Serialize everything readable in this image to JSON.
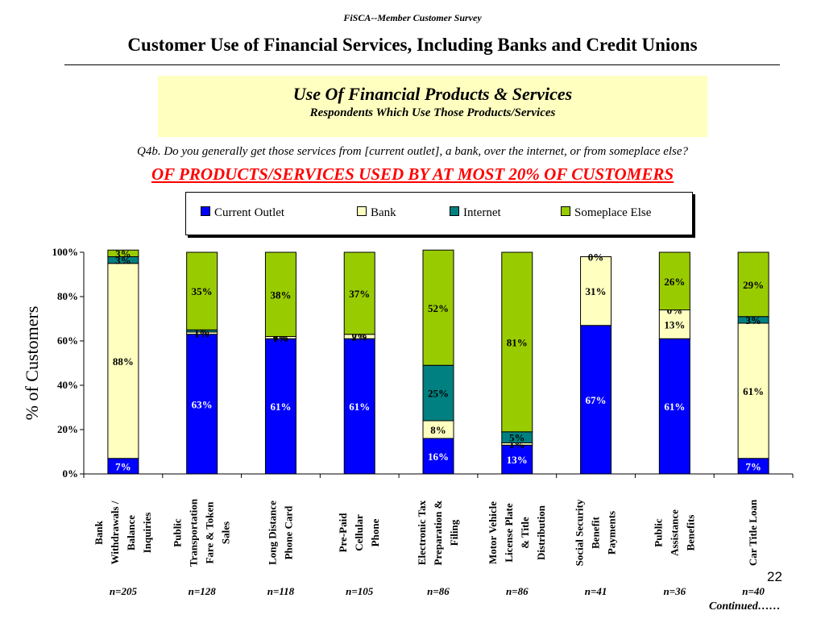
{
  "header": {
    "survey_label": "FiSCA--Member Customer Survey",
    "title": "Customer Use of Financial Services, Including Banks and Credit Unions"
  },
  "banner": {
    "title": "Use Of Financial Products & Services",
    "subtitle": "Respondents  Which Use Those Products/Services"
  },
  "question": "Q4b.  Do you generally get those services from [current outlet], a bank, over the internet, or from someplace else?",
  "emphasis": "OF PRODUCTS/SERVICES USED BY AT MOST 20% OF CUSTOMERS",
  "page_number": "22",
  "continued_note": "Continued……",
  "chart_data": {
    "type": "bar",
    "stacked": true,
    "ylabel": "% of Customers",
    "ylim": [
      0,
      100
    ],
    "y_ticks": [
      "0%",
      "20%",
      "40%",
      "60%",
      "80%",
      "100%"
    ],
    "legend_position": "top",
    "categories": [
      "Bank Withdrawals / Balance Inquiries",
      "Public Transportation Fare & Token Sales",
      "Long Distance Phone Card",
      "Pre-Paid Cellular Phone",
      "Electronic Tax Preparation & Filing",
      "Motor Vehicle License Plate & Title Distribution",
      "Social Security Benefit Payments",
      "Public Assistance Benefits",
      "Car Title Loan"
    ],
    "category_lines": [
      [
        "Bank",
        "Withdrawals /",
        "Balance",
        "Inquiries"
      ],
      [
        "Public",
        "Transportation",
        "Fare & Token",
        "Sales"
      ],
      [
        "Long Distance",
        "Phone Card"
      ],
      [
        "Pre-Paid",
        "Cellular",
        "Phone"
      ],
      [
        "Electronic Tax",
        "Preparation &",
        "Filing"
      ],
      [
        "Motor Vehicle",
        "License Plate",
        "& Title",
        "Distribution"
      ],
      [
        "Social Security",
        "Benefit",
        "Payments"
      ],
      [
        "Public",
        "Assistance",
        "Benefits"
      ],
      [
        "Car Title Loan"
      ]
    ],
    "sample_sizes": [
      "n=205",
      "n=128",
      "n=118",
      "n=105",
      "n=86",
      "n=86",
      "n=41",
      "n=36",
      "n=40"
    ],
    "series": [
      {
        "name": "Current Outlet",
        "color": "#0000ff",
        "label_color": "#ffffff",
        "values": [
          7,
          63,
          61,
          61,
          16,
          13,
          67,
          61,
          7
        ]
      },
      {
        "name": "Bank",
        "color": "#ffffc0",
        "label_color": "#000000",
        "values": [
          88,
          1,
          1,
          2,
          8,
          1,
          31,
          13,
          61
        ]
      },
      {
        "name": "Internet",
        "color": "#008080",
        "label_color": "#000000",
        "values": [
          3,
          1,
          0,
          0,
          25,
          5,
          0,
          0,
          3
        ]
      },
      {
        "name": "Someplace Else",
        "color": "#99cc00",
        "label_color": "#000000",
        "values": [
          3,
          35,
          38,
          37,
          52,
          81,
          0,
          26,
          29
        ]
      }
    ]
  }
}
